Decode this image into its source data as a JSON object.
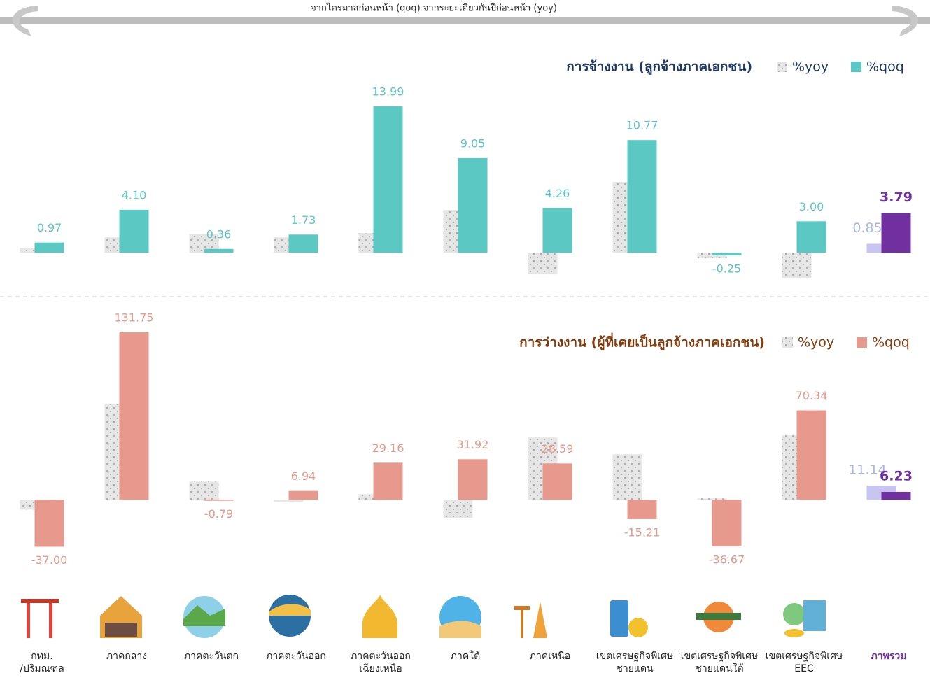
{
  "header": {
    "text": "จากไตรมาสก่อนหน้า (qoq) จากระยะเดียวกันปีก่อนหน้า (yoy)"
  },
  "chart_data": [
    {
      "type": "bar",
      "title": "การจ้างงาน (ลูกจ้างภาคเอกชน)",
      "categories": [
        "กทม.\n/ปริมณฑล",
        "ภาคกลาง",
        "ภาคตะวันตก",
        "ภาคตะวันออก",
        "ภาคตะวันออก\nเฉียงเหนือ",
        "ภาคใต้",
        "ภาคเหนือ",
        "เขตเศรษฐกิจพิเศษ\nชายแดน",
        "เขตเศรษฐกิจพิเศษ\nชายแดนใต้",
        "เขตเศรษฐกิจพิเศษ\nEEC",
        "ภาพรวม"
      ],
      "ylim": [
        -3,
        16
      ],
      "total_color": "#7030a0",
      "label_color": "#5bc8c3",
      "series": [
        {
          "name": "%yoy",
          "color": "#e3e3e3",
          "total_color": "#c9c5f2",
          "total_label_color": "#a9b8e0",
          "values": [
            0.47,
            1.47,
            1.8,
            1.47,
            1.87,
            4.08,
            -2.07,
            6.76,
            -0.54,
            -2.41,
            0.85
          ],
          "value_labels": [
            null,
            null,
            null,
            null,
            null,
            null,
            null,
            null,
            null,
            null,
            "0.85"
          ]
        },
        {
          "name": "%qoq",
          "color": "#5bc8c3",
          "total_color": "#7030a0",
          "total_label_color": "#7030a0",
          "values": [
            0.97,
            4.1,
            0.36,
            1.73,
            13.99,
            9.05,
            4.26,
            10.77,
            -0.25,
            3.0,
            3.79
          ],
          "value_labels": [
            "0.97",
            "4.10",
            "0.36",
            "1.73",
            "13.99",
            "9.05",
            "4.26",
            "10.77",
            "-0.25",
            "3.00",
            "3.79"
          ]
        }
      ]
    },
    {
      "type": "bar",
      "title": "การว่างงาน (ผู้ที่เคยเป็นลูกจ้างภาคเอกชน)",
      "ylim": [
        -45,
        140
      ],
      "label_color": "#e8998d",
      "series": [
        {
          "name": "%yoy",
          "color": "#e3e3e3",
          "total_color": "#c9c5f2",
          "total_label_color": "#a9b8e0",
          "values": [
            -7.7,
            75,
            14.3,
            -1.7,
            4.4,
            -14.3,
            49,
            35.8,
            1.1,
            50.7,
            11.14
          ],
          "value_labels": [
            null,
            null,
            null,
            null,
            null,
            null,
            null,
            null,
            null,
            null,
            "11.14"
          ]
        },
        {
          "name": "%qoq",
          "color": "#e8998d",
          "total_color": "#7030a0",
          "total_label_color": "#7030a0",
          "values": [
            -37.0,
            131.75,
            -0.79,
            6.94,
            29.16,
            31.92,
            28.59,
            -15.21,
            -36.67,
            70.34,
            6.23
          ],
          "value_labels": [
            "-37.00",
            "131.75",
            "-0.79",
            "6.94",
            "29.16",
            "31.92",
            "28.59",
            "-15.21",
            "-36.67",
            "70.34",
            "6.23"
          ]
        }
      ]
    }
  ]
}
